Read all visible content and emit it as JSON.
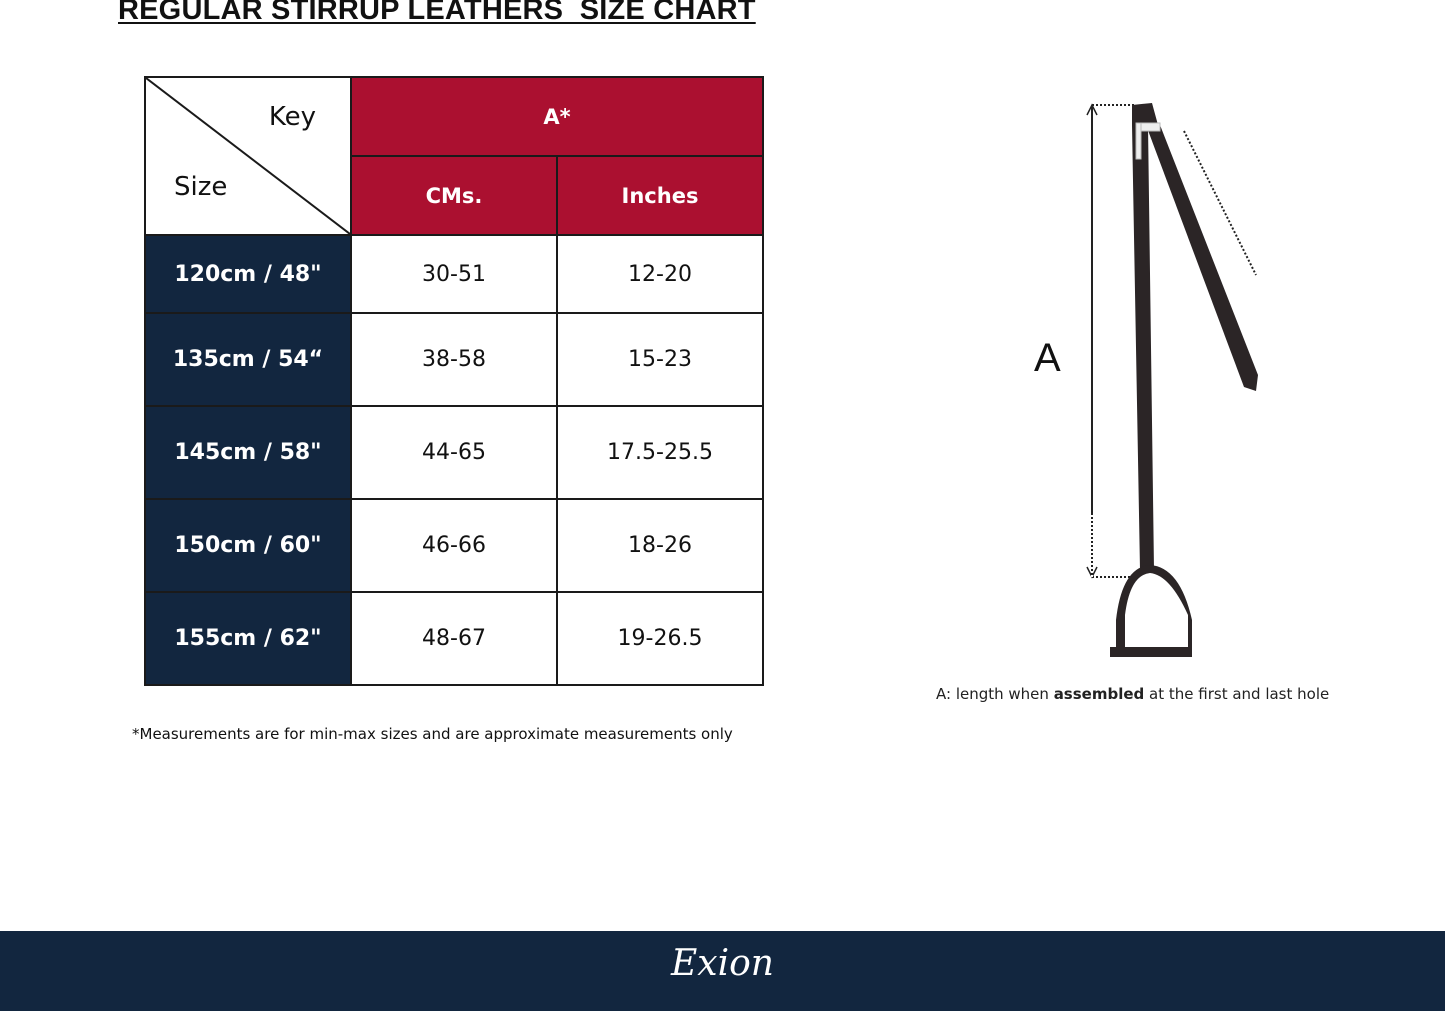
{
  "title": "REGULAR STIRRUP LEATHERS  SIZE CHART",
  "table": {
    "key_label": "Key",
    "size_label": "Size",
    "group_header": "A*",
    "columns": [
      "CMs.",
      "Inches"
    ],
    "rows": [
      {
        "size": "120cm / 48\"",
        "cms": "30-51",
        "inches": "12-20"
      },
      {
        "size": "135cm / 54“",
        "cms": "38-58",
        "inches": "15-23"
      },
      {
        "size": "145cm / 58\"",
        "cms": "44-65",
        "inches": "17.5-25.5"
      },
      {
        "size": "150cm / 60\"",
        "cms": "46-66",
        "inches": "18-26"
      },
      {
        "size": "155cm / 62\"",
        "cms": "48-67",
        "inches": "19-26.5"
      }
    ]
  },
  "note": "*Measurements are for min-max sizes and are approximate measurements only",
  "diagram": {
    "label": "A",
    "caption_pre": "A: length when ",
    "caption_bold": "assembled",
    "caption_post": " at the first and last hole"
  },
  "footer": {
    "logo": "Exion"
  },
  "colors": {
    "header_red": "#ab1030",
    "navy": "#12263f"
  }
}
